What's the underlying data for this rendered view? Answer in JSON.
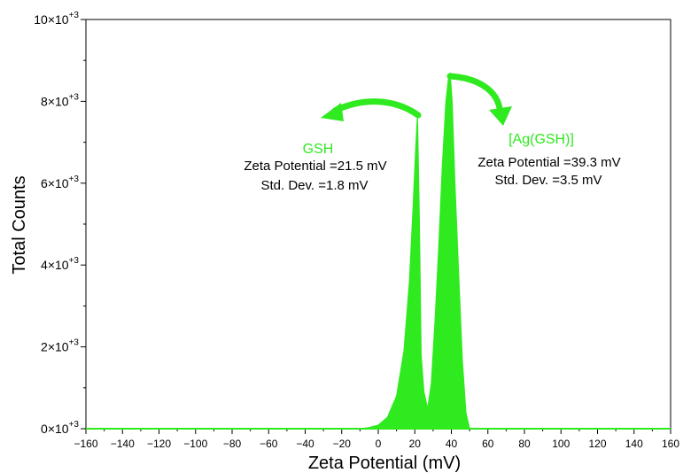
{
  "chart_data": {
    "type": "area",
    "title": "",
    "xlabel": "Zeta Potential (mV)",
    "ylabel": "Total Counts",
    "xlim": [
      -160,
      160
    ],
    "ylim": [
      0,
      10000
    ],
    "x_ticks": [
      -160,
      -140,
      -120,
      -100,
      -80,
      -60,
      -40,
      -20,
      0,
      20,
      40,
      60,
      80,
      100,
      120,
      140,
      160
    ],
    "x_tick_labels": [
      "−160",
      "−140",
      "−120",
      "−100",
      "−80",
      "−60",
      "−40",
      "−20",
      "0",
      "20",
      "40",
      "60",
      "80",
      "100",
      "120",
      "140",
      "160"
    ],
    "y_ticks": [
      {
        "value": 0,
        "mantissa": "0×10",
        "exp": "+3"
      },
      {
        "value": 2000,
        "mantissa": "2×10",
        "exp": "+3"
      },
      {
        "value": 4000,
        "mantissa": "4×10",
        "exp": "+3"
      },
      {
        "value": 6000,
        "mantissa": "6×10",
        "exp": "+3"
      },
      {
        "value": 8000,
        "mantissa": "8×10",
        "exp": "+3"
      },
      {
        "value": 10000,
        "mantissa": "10×10",
        "exp": "+3"
      }
    ],
    "grid": false,
    "fill_color": "#2eea1f",
    "series": [
      {
        "x": [
          -160,
          -10,
          -5,
          0,
          5,
          10,
          14,
          17,
          19,
          20.5,
          21.5,
          22.5,
          23.5,
          25,
          27,
          29,
          31,
          33,
          35,
          37,
          38.5,
          39.3,
          40.5,
          42,
          44,
          46,
          48,
          50,
          160
        ],
        "y": [
          0,
          0,
          30,
          90,
          280,
          800,
          1900,
          3600,
          5400,
          6900,
          7700,
          5200,
          1800,
          900,
          500,
          1100,
          2600,
          4400,
          6400,
          8000,
          8600,
          8700,
          8000,
          6000,
          3800,
          1700,
          400,
          0,
          0
        ]
      }
    ],
    "annotations": [
      {
        "title": "GSH",
        "line1": "Zeta Potential =21.5 mV",
        "line2": "Std. Dev. =1.8 mV",
        "color": "#2eea1f"
      },
      {
        "title": "[Ag(GSH)]",
        "line1": "Zeta Potential =39.3 mV",
        "line2": "Std. Dev. =3.5 mV",
        "color": "#2eea1f"
      }
    ]
  }
}
